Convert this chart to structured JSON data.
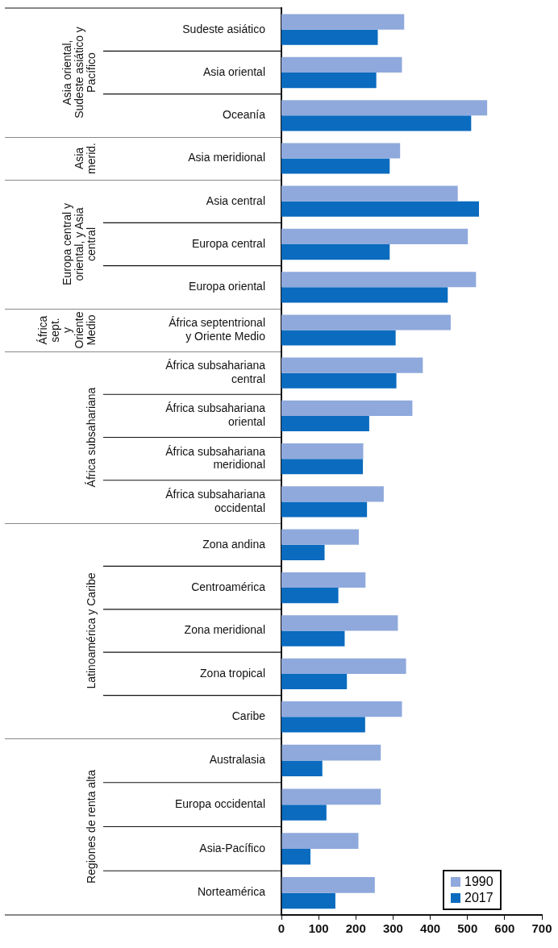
{
  "chart_data": [
    {
      "type": "bar",
      "orientation": "horizontal",
      "categories": [
        "Sudeste asiático",
        "Asia oriental",
        "Oceanía"
      ],
      "series": [
        {
          "color": "#8fa9dc",
          "values": [
            330,
            324,
            553
          ]
        },
        {
          "color": "#0a6bbf",
          "values": [
            259,
            255,
            510
          ]
        }
      ],
      "xlim": [
        0,
        700
      ],
      "tick_labels": "y",
      "annotations": [
        "Asia oriental, Sudeste asiático y Pacífico"
      ]
    },
    {
      "type": "bar",
      "orientation": "horizontal",
      "categories": [
        "Asia meridional"
      ],
      "series": [
        {
          "color": "#8fa9dc",
          "values": [
            319
          ]
        },
        {
          "color": "#0a6bbf",
          "values": [
            291
          ]
        }
      ],
      "xlim": [
        0,
        700
      ],
      "tick_labels": "y",
      "annotations": [
        "Asia merid."
      ]
    },
    {
      "type": "bar",
      "orientation": "horizontal",
      "categories": [
        "Asia central",
        "Europa central",
        "Europa oriental"
      ],
      "series": [
        {
          "color": "#8fa9dc",
          "values": [
            474,
            501,
            523
          ]
        },
        {
          "color": "#0a6bbf",
          "values": [
            531,
            291,
            447
          ]
        }
      ],
      "xlim": [
        0,
        700
      ],
      "tick_labels": "y",
      "annotations": [
        "Europa central y oriental, y Asia central"
      ]
    },
    {
      "type": "bar",
      "orientation": "horizontal",
      "categories": [
        "África septentrional y Oriente Medio"
      ],
      "series": [
        {
          "color": "#8fa9dc",
          "values": [
            455
          ]
        },
        {
          "color": "#0a6bbf",
          "values": [
            307
          ]
        }
      ],
      "xlim": [
        0,
        700
      ],
      "tick_labels": "y",
      "annotations": [
        "África sept. y Oriente Medio"
      ]
    },
    {
      "type": "bar",
      "orientation": "horizontal",
      "categories": [
        "África subsahariana central",
        "África subsahariana oriental",
        "África subsahariana meridional",
        "África subsahariana occidental"
      ],
      "series": [
        {
          "color": "#8fa9dc",
          "values": [
            380,
            352,
            220,
            275
          ]
        },
        {
          "color": "#0a6bbf",
          "values": [
            309,
            236,
            219,
            230
          ]
        }
      ],
      "xlim": [
        0,
        700
      ],
      "tick_labels": "y",
      "annotations": [
        "África subsahariana"
      ]
    },
    {
      "type": "bar",
      "orientation": "horizontal",
      "categories": [
        "Zona andina",
        "Centroamérica",
        "Zona meridional",
        "Zona tropical",
        "Caribe"
      ],
      "series": [
        {
          "color": "#8fa9dc",
          "values": [
            208,
            226,
            313,
            335,
            324
          ]
        },
        {
          "color": "#0a6bbf",
          "values": [
            116,
            153,
            170,
            176,
            225
          ]
        }
      ],
      "xlim": [
        0,
        700
      ],
      "tick_labels": "y",
      "annotations": [
        "Latinoamérica y Caribe"
      ]
    },
    {
      "type": "bar",
      "orientation": "horizontal",
      "categories": [
        "Australasia",
        "Europa occidental",
        "Asia-Pacífico",
        "Norteamérica"
      ],
      "series": [
        {
          "name": "1990",
          "color": "#8fa9dc",
          "values": [
            267,
            267,
            207,
            251
          ]
        },
        {
          "name": "2017",
          "color": "#0a6bbf",
          "values": [
            110,
            121,
            78,
            145
          ]
        }
      ],
      "xlim": [
        0,
        700
      ],
      "xticks": [
        0,
        100,
        200,
        300,
        400,
        500,
        600,
        700
      ],
      "legend": "bottom right",
      "annotations": [
        "Regiones de renta alta"
      ]
    }
  ]
}
